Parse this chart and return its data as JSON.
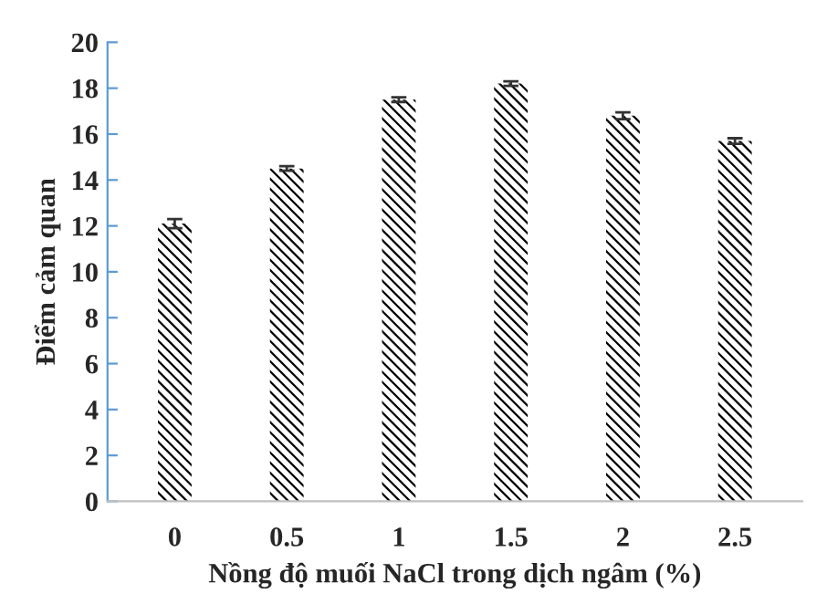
{
  "chart_data": {
    "type": "bar",
    "xlabel": "Nồng độ muối NaCl trong dịch ngâm (%)",
    "ylabel": "Điểm cảm quan",
    "categories": [
      "0",
      "0.5",
      "1",
      "1.5",
      "2",
      "2.5"
    ],
    "values": [
      12.1,
      14.5,
      17.5,
      18.2,
      16.8,
      15.7
    ],
    "errors": [
      0.2,
      0.1,
      0.1,
      0.1,
      0.15,
      0.12
    ],
    "color": "#000000",
    "ylim": [
      0,
      20
    ],
    "yticks": [
      0,
      2,
      4,
      6,
      8,
      10,
      12,
      14,
      16,
      18,
      20
    ],
    "grid": false,
    "legend": false
  }
}
